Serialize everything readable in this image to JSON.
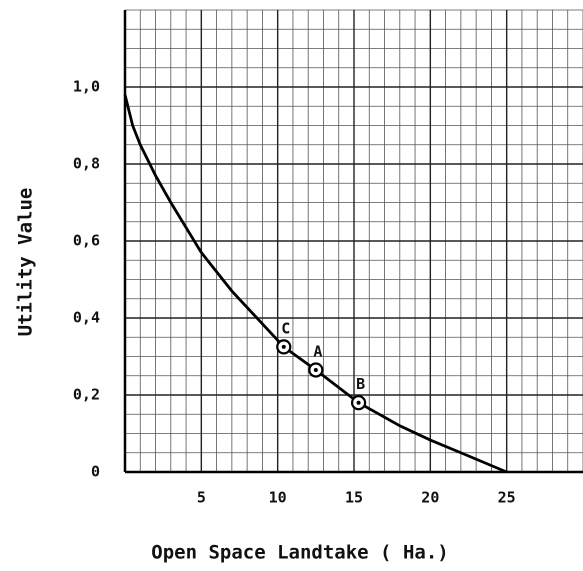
{
  "chart_data": {
    "type": "line",
    "x_label": "Open Space Landtake  ( Ha.)",
    "y_label": "Utility Value",
    "x": [
      0,
      0.5,
      1,
      2,
      3,
      5,
      7,
      10.4,
      12.5,
      15.3,
      18,
      20,
      22,
      25
    ],
    "values": [
      0.98,
      0.9,
      0.85,
      0.77,
      0.7,
      0.57,
      0.47,
      0.325,
      0.265,
      0.18,
      0.12,
      0.083,
      0.05,
      0
    ],
    "color": "#000000",
    "points": {
      "labels": [
        "C",
        "A",
        "B"
      ],
      "x": [
        10.4,
        12.5,
        15.3
      ],
      "y": [
        0.325,
        0.265,
        0.18
      ]
    },
    "xlim": [
      0,
      30
    ],
    "ylim": [
      0,
      1.2
    ],
    "xticks": [
      5,
      10,
      15,
      20,
      25
    ],
    "yticks": [
      0,
      {
        "value": 0.2,
        "label": "0,2"
      },
      {
        "value": 0.4,
        "label": "0,4"
      },
      {
        "value": 0.6,
        "label": "0,6"
      },
      {
        "value": 0.8,
        "label": "0,8"
      },
      {
        "value": 1.0,
        "label": "1,0"
      }
    ],
    "grid": true
  }
}
